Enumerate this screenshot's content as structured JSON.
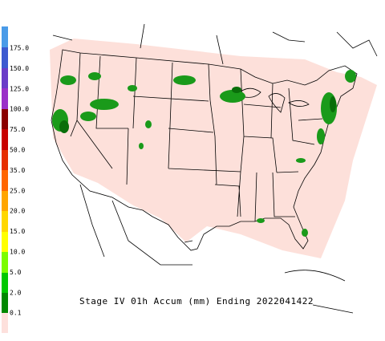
{
  "legend": {
    "labels": [
      "175.0",
      "150.0",
      "125.0",
      "100.0",
      "75.0",
      "50.0",
      "35.0",
      "25.0",
      "20.0",
      "15.0",
      "10.0",
      "5.0",
      "2.0",
      "0.1"
    ]
  },
  "caption": "Stage IV 01h Accum (mm) Ending 2022041422"
}
